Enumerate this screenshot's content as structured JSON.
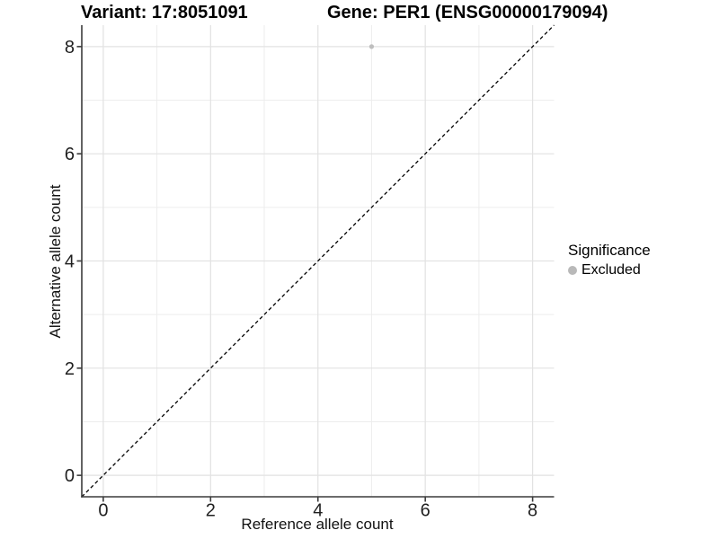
{
  "chart_data": {
    "type": "scatter",
    "titles": {
      "left": "Variant: 17:8051091",
      "right": "Gene: PER1 (ENSG00000179094)"
    },
    "xlabel": "Reference allele count",
    "ylabel": "Alternative allele count",
    "xlim": [
      -0.4,
      8.4
    ],
    "ylim": [
      -0.4,
      8.4
    ],
    "x_ticks": [
      0,
      2,
      4,
      6,
      8
    ],
    "y_ticks": [
      0,
      2,
      4,
      6,
      8
    ],
    "x_minor": [
      1,
      3,
      5,
      7
    ],
    "y_minor": [
      1,
      3,
      5,
      7
    ],
    "grid": "major+minor",
    "legend_position": "right",
    "series": [
      {
        "name": "Excluded",
        "color": "#bebebe",
        "point_radius": 2.6,
        "points": [
          {
            "x": 5,
            "y": 8
          }
        ]
      }
    ],
    "identity_line": {
      "style": "dashed",
      "color": "#000000",
      "x1": -0.4,
      "y1": -0.4,
      "x2": 8.4,
      "y2": 8.4
    },
    "legend": {
      "title": "Significance",
      "items": [
        {
          "label": "Excluded",
          "color": "#b9b9b9"
        }
      ]
    },
    "colors": {
      "grid_major": "#e2e2e2",
      "grid_minor": "#ededed",
      "axis_line": "#3c3c3c",
      "tick_text": "#1f1f1f",
      "background": "#ffffff"
    }
  }
}
